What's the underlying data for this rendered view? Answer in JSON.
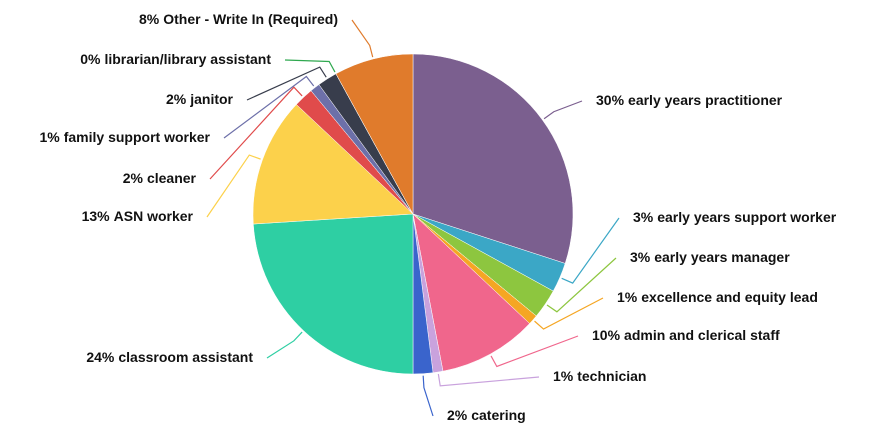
{
  "chart_data": {
    "type": "pie",
    "categories": [
      "early years practitioner",
      "early years support worker",
      "early years manager",
      "excellence and equity lead",
      "admin and clerical staff",
      "technician",
      "catering",
      "classroom assistant",
      "ASN worker",
      "cleaner",
      "family support worker",
      "janitor",
      "librarian/library assistant",
      "Other - Write In (Required)"
    ],
    "values": [
      30,
      3,
      3,
      1,
      10,
      1,
      2,
      24,
      13,
      2,
      1,
      2,
      0,
      8
    ],
    "value_labels": [
      "30%",
      "3%",
      "3%",
      "1%",
      "10%",
      "1%",
      "2%",
      "24%",
      "13%",
      "2%",
      "1%",
      "2%",
      "0%",
      "8%"
    ],
    "colors": [
      "#7b5f8f",
      "#3ba7c6",
      "#8dc63f",
      "#f5a623",
      "#f0668c",
      "#c9a2dd",
      "#3a64cc",
      "#2ecfa3",
      "#fcd14b",
      "#e04b4b",
      "#6d70a9",
      "#383d4c",
      "#2fa84f",
      "#e07b2c"
    ]
  }
}
